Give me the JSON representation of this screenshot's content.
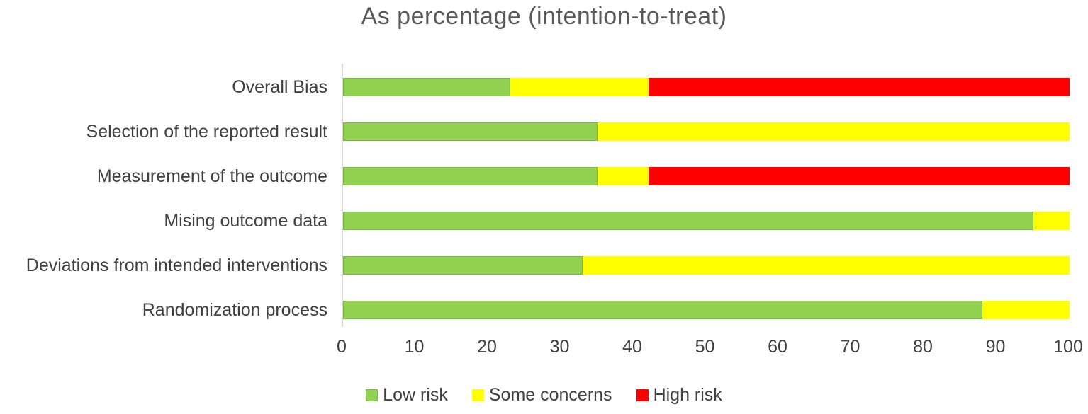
{
  "chart_data": {
    "type": "bar",
    "orientation": "horizontal",
    "stacked": true,
    "title": "As percentage (intention-to-treat)",
    "categories": [
      "Overall Bias",
      "Selection of the reported result",
      "Measurement of the outcome",
      "Mising outcome data",
      "Deviations from intended interventions",
      "Randomization process"
    ],
    "series": [
      {
        "name": "Low risk",
        "color": "#92d050",
        "border": "#7ab648",
        "values": [
          23,
          35,
          35,
          95,
          33,
          88
        ]
      },
      {
        "name": "Some concerns",
        "color": "#ffff00",
        "border": "",
        "values": [
          19,
          65,
          7,
          5,
          67,
          12
        ]
      },
      {
        "name": "High risk",
        "color": "#ff0000",
        "border": "",
        "values": [
          58,
          0,
          58,
          0,
          0,
          0
        ]
      }
    ],
    "x_axis": {
      "min": 0,
      "max": 100,
      "step": 10,
      "tick_labels": [
        "0",
        "10",
        "20",
        "30",
        "40",
        "50",
        "60",
        "70",
        "80",
        "90",
        "100"
      ]
    },
    "legend": {
      "position": "bottom"
    },
    "grid": false,
    "colors": {
      "title_text": "#595959",
      "axis_text": "#404040",
      "axis_line": "#d9d9d9",
      "background": "#ffffff"
    }
  }
}
